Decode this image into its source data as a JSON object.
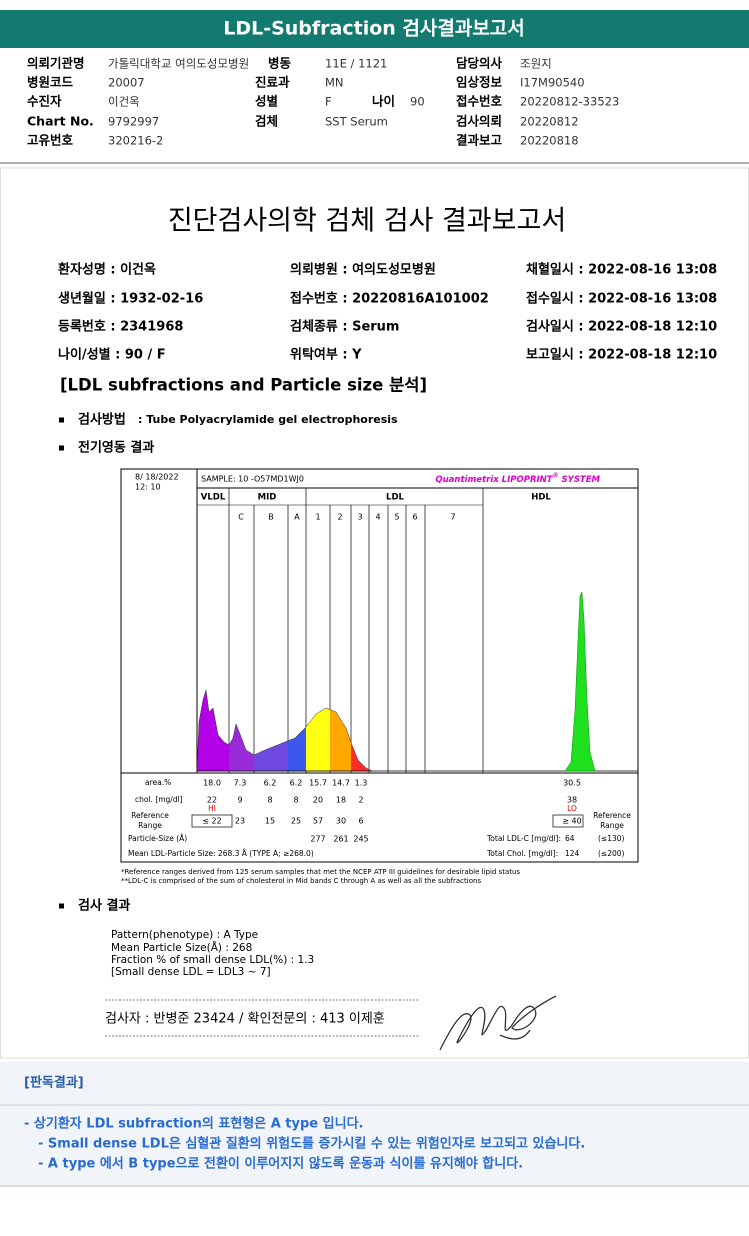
{
  "header": {
    "title": "LDL-Subfraction 검사결과보고서"
  },
  "request_info": {
    "fields": [
      {
        "label": "의뢰기관명",
        "value": "가톨릭대학교 여의도성모병원"
      },
      {
        "label": "병동",
        "value": "11E / 1121"
      },
      {
        "label": "담당의사",
        "value": "조원지"
      },
      {
        "label": "병원코드",
        "value": "20007"
      },
      {
        "label": "진료과",
        "value": "MN"
      },
      {
        "label": "임상정보",
        "value": "I17M90540"
      },
      {
        "label": "수진자",
        "value": "이건옥"
      },
      {
        "label": "성별",
        "value": "F"
      },
      {
        "label": "나이",
        "value": "90"
      },
      {
        "label": "접수번호",
        "value": "20220812-33523"
      },
      {
        "label": "Chart No.",
        "value": "9792997"
      },
      {
        "label": "검체",
        "value": "SST Serum"
      },
      {
        "label": "검사의뢰",
        "value": "20220812"
      },
      {
        "label": "고유번호",
        "value": "320216-2"
      },
      {
        "label": "결과보고",
        "value": "20220818"
      }
    ]
  },
  "report": {
    "title": "진단검사의학 검체 검사 결과보고서",
    "patient": [
      "환자성명 : 이건옥",
      "의뢰병원 : 여의도성모병원",
      "채혈일시 : 2022-08-16 13:08",
      "생년월일 : 1932-02-16",
      "접수번호 : 20220816A101002",
      "접수일시 : 2022-08-16 13:08",
      "등록번호 : 2341968",
      "검체종류 : Serum",
      "검사일시 : 2022-08-18 12:10",
      "나이/성별 : 90 / F",
      "위탁여부 : Y",
      "보고일시 : 2022-08-18 12:10"
    ],
    "section_title": "[LDL subfractions and Particle size 분석]",
    "method_label": "검사방법",
    "method": ": Tube Polyacrylamide gel electrophoresis",
    "electro_label": "전기영동 결과",
    "result_label": "검사 결과",
    "results": [
      "Pattern(phenotype) : A Type",
      "Mean Particle Size(Å) : 268",
      "Fraction % of small dense LDL(%) : 1.3",
      "[Small dense LDL = LDL3 ~ 7]"
    ],
    "signature_line": "검사자 : 반병준  23424  /  확인전문의 : 413  이제훈"
  },
  "panel": {
    "date": "8/ 18/2022",
    "time": "12: 10",
    "sample": "SAMPLE:   10 -O57MD1WJ0",
    "brand": "Quantimetrix LIPOPRINT",
    "brand_mark": "®",
    "brand_suffix": " SYSTEM",
    "groups": [
      "VLDL",
      "MID",
      "LDL",
      "HDL"
    ],
    "bands": [
      "C",
      "B",
      "A",
      "1",
      "2",
      "3",
      "4",
      "5",
      "6",
      "7"
    ],
    "area_label": "area.%",
    "area": [
      "18.0",
      "7.3",
      "6.2",
      "6.2",
      "15.7",
      "14.7",
      "1.3",
      "30.5"
    ],
    "chol_label": "chol. [mg/dl]",
    "chol": [
      "22",
      "9",
      "8",
      "8",
      "20",
      "18",
      "2",
      "38"
    ],
    "chol_flags": [
      "HI",
      "LO"
    ],
    "ref_label": [
      "Reference",
      "Range"
    ],
    "ref": [
      "≤ 22",
      "23",
      "15",
      "25",
      "57",
      "30",
      "6",
      "≥ 40"
    ],
    "particle_label": "Particle-Size (Å)",
    "particle": [
      "277",
      "261",
      "245"
    ],
    "mean_size": "Mean LDL-Particle Size:   268.3 Å   (TYPE A; ≥268.0)",
    "total_ldl": {
      "label": "Total LDL-C [mg/dl]:",
      "value": "64",
      "ref": "(≤130)"
    },
    "total_chol": {
      "label": "Total Chol. [mg/dl]:",
      "value": "124",
      "ref": "(≤200)"
    },
    "footnotes": [
      "*Reference ranges derived from 125 serum samples that met the NCEP ATP III guidelines for desirable lipid status",
      "**LDL-C is comprised of the sum of cholesterol in Mid bands C through A as well as all the subfractions"
    ]
  },
  "interpretation": {
    "title": "[판독결과]",
    "lines": [
      "- 상기환자 LDL subfraction의 표현형은 A type 입니다.",
      "-  Small dense LDL은 심혈관 질환의 위험도를 증가시킬 수 있는 위험인자로 보고되고 있습니다.",
      "-  A type 에서 B type으로 전환이 이루어지지 않도록 운동과 식이를 유지해야 합니다."
    ]
  }
}
